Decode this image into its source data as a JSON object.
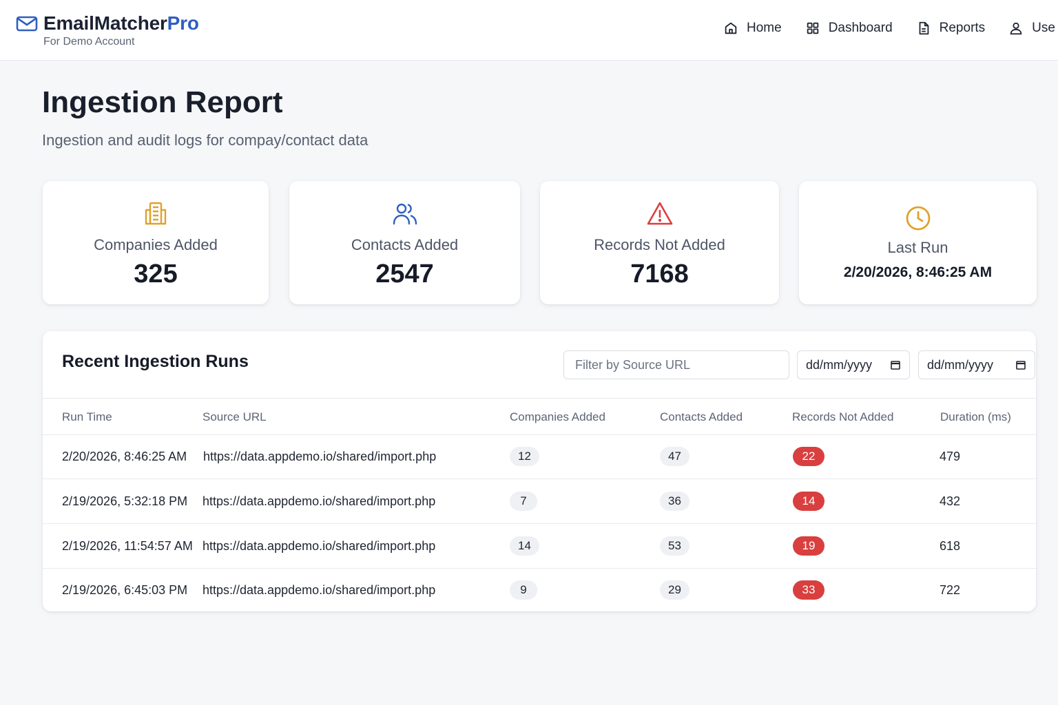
{
  "brand": {
    "name_main": "EmailMatcher",
    "name_accent": "Pro",
    "subtitle": "For Demo Account"
  },
  "nav": {
    "items": [
      {
        "label": "Home",
        "icon": "home-icon"
      },
      {
        "label": "Dashboard",
        "icon": "grid-icon"
      },
      {
        "label": "Reports",
        "icon": "document-icon"
      },
      {
        "label": "Use",
        "icon": "user-icon"
      }
    ]
  },
  "page": {
    "title": "Ingestion Report",
    "subtitle": "Ingestion and audit logs for compay/contact data"
  },
  "stats": {
    "companies": {
      "label": "Companies Added",
      "value": "325",
      "icon": "building-icon",
      "color": "#e0a12a"
    },
    "contacts": {
      "label": "Contacts Added",
      "value": "2547",
      "icon": "users-icon",
      "color": "#2f5fbf"
    },
    "not_added": {
      "label": "Records Not Added",
      "value": "7168",
      "icon": "warning-icon",
      "color": "#d93f3f"
    },
    "last_run": {
      "label": "Last Run",
      "value": "2/20/2026, 8:46:25 AM",
      "icon": "clock-icon",
      "color": "#e0a12a"
    }
  },
  "runs": {
    "title": "Recent Ingestion Runs",
    "filter_placeholder": "Filter by Source URL",
    "date_from": "dd/mm/yyyy",
    "date_to": "dd/mm/yyyy",
    "columns": [
      "Run Time",
      "Source URL",
      "Companies Added",
      "Contacts Added",
      "Records Not Added",
      "Duration (ms)"
    ],
    "rows": [
      {
        "time": "2/20/2026, 8:46:25 AM",
        "url": "https://data.appdemo.io/shared/import.php",
        "companies": "12",
        "contacts": "47",
        "not_added": "22",
        "duration": "479"
      },
      {
        "time": "2/19/2026, 5:32:18 PM",
        "url": "https://data.appdemo.io/shared/import.php",
        "companies": "7",
        "contacts": "36",
        "not_added": "14",
        "duration": "432"
      },
      {
        "time": "2/19/2026, 11:54:57 AM",
        "url": "https://data.appdemo.io/shared/import.php",
        "companies": "14",
        "contacts": "53",
        "not_added": "19",
        "duration": "618"
      },
      {
        "time": "2/19/2026, 6:45:03 PM",
        "url": "https://data.appdemo.io/shared/import.php",
        "companies": "9",
        "contacts": "29",
        "not_added": "33",
        "duration": "722"
      }
    ]
  },
  "colors": {
    "accent": "#2f5fbf",
    "danger": "#d93f3f",
    "warning": "#e0a12a"
  }
}
